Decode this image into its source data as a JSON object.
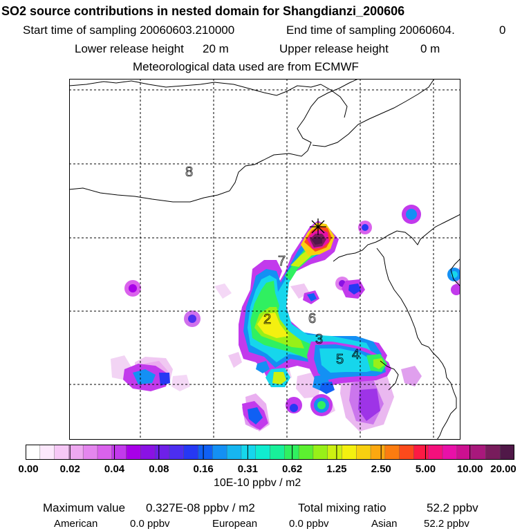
{
  "header": {
    "title": "SO2 source contributions in nested domain for Shangdianzi_200606",
    "start_label": "Start time of sampling 20060603.210000",
    "end_label": "End time of sampling 20060604.",
    "end_value": "0",
    "lower_label": "Lower release height",
    "lower_value": "20 m",
    "upper_label": "Upper release height",
    "upper_value": "0 m",
    "met_label": "Meteorological data used are from ECMWF"
  },
  "map": {
    "region_labels": [
      "8",
      "7",
      "2",
      "6",
      "3",
      "5",
      "4"
    ],
    "receptor_marker": "star"
  },
  "colorbar": {
    "units": "10E-10 ppbv / m2",
    "tick_labels": [
      "0.00",
      "0.02",
      "0.04",
      "0.08",
      "0.16",
      "0.31",
      "0.62",
      "1.25",
      "2.50",
      "5.00",
      "10.00",
      "20.00"
    ],
    "colors": [
      "#ffffff",
      "#fce8fc",
      "#f6c8f6",
      "#eea8f0",
      "#e486ee",
      "#da62ec",
      "#c23aec",
      "#a800e8",
      "#8a12e4",
      "#6e20e8",
      "#4c2ef0",
      "#2638f4",
      "#1060f4",
      "#1490f4",
      "#16b6f0",
      "#16d6ec",
      "#10ecd0",
      "#18f09a",
      "#30f060",
      "#5cf030",
      "#98f018",
      "#ccf012",
      "#f4f010",
      "#f8d010",
      "#fca810",
      "#fc7c10",
      "#fc4a1c",
      "#fc1a44",
      "#f4107c",
      "#e810a8",
      "#cc1090",
      "#a8187c",
      "#781c5c",
      "#501848"
    ]
  },
  "footer": {
    "max_label": "Maximum value",
    "max_value": "0.327E-08 ppbv / m2",
    "total_label": "Total mixing ratio",
    "total_value": "52.2 ppbv",
    "american_label": "American",
    "american_value": "0.0 ppbv",
    "european_label": "European",
    "european_value": "0.0 ppbv",
    "asian_label": "Asian",
    "asian_value": "52.2 ppbv"
  }
}
